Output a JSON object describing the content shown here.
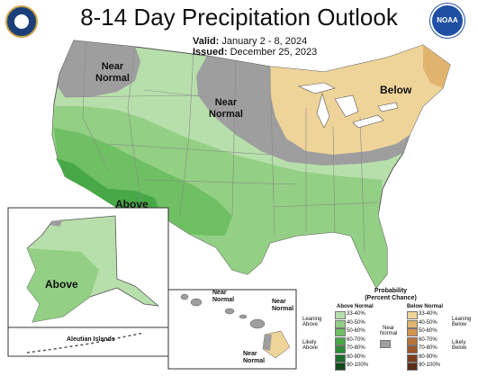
{
  "title": "8-14 Day Precipitation Outlook",
  "valid": {
    "label": "Valid:",
    "value": "January 2 - 8, 2024"
  },
  "issued": {
    "label": "Issued:",
    "value": "December 25, 2023"
  },
  "regions": {
    "near_normal_nw": "Near\nNormal",
    "near_normal_central": "Near\nNormal",
    "below_ne": "Below",
    "above_sw": "Above",
    "above_ak": "Above",
    "aleutian": "Aleutian Islands",
    "hi_near_1": "Near\nNormal",
    "hi_near_2": "Near\nNormal",
    "hi_near_3": "Near\nNormal"
  },
  "legend": {
    "title": "Probability\n(Percent Chance)",
    "above_header": "Above Normal",
    "below_header": "Below Normal",
    "near_label": "Near\nNormal",
    "leaning_above": "Leaning\nAbove",
    "likely_above": "Likely\nAbove",
    "leaning_below": "Leaning\nBelow",
    "likely_below": "Likely\nBelow",
    "above_bins": [
      "33-40%",
      "40-50%",
      "50-60%",
      "60-70%",
      "70-80%",
      "80-90%",
      "90-100%"
    ],
    "below_bins": [
      "33-40%",
      "40-50%",
      "50-60%",
      "60-70%",
      "70-80%",
      "80-90%",
      "90-100%"
    ],
    "above_colors": [
      "#b7dfab",
      "#93cf84",
      "#6fbf63",
      "#48a848",
      "#2d8a36",
      "#1e6b2a",
      "#124a1c"
    ],
    "below_colors": [
      "#efd49a",
      "#e0b46e",
      "#d1944f",
      "#b8743a",
      "#9a562a",
      "#7b3f20",
      "#5a2b16"
    ],
    "near_color": "#9e9e9e"
  },
  "colors": {
    "near": "#9e9e9e",
    "above_33": "#b7dfab",
    "above_40": "#93cf84",
    "above_50": "#6fbf63",
    "above_60": "#48a848",
    "below_33": "#efd49a",
    "below_40": "#e0b46e",
    "state_line": "#8a8a8a"
  },
  "logos": {
    "noaa_text": "NOAA",
    "doc_icon": "commerce-seal-icon",
    "noaa_icon": "noaa-logo-icon"
  }
}
